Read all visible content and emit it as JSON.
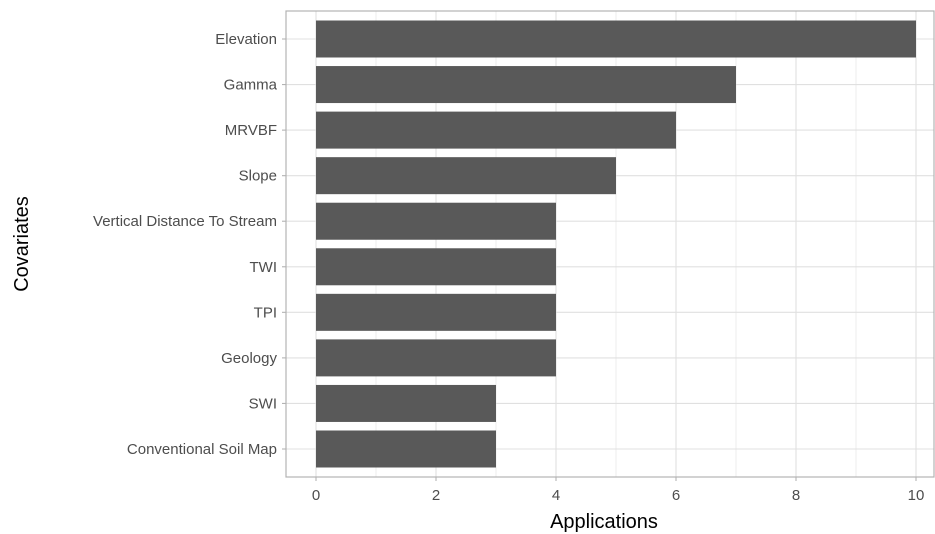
{
  "chart_data": {
    "type": "bar",
    "orientation": "horizontal",
    "categories": [
      "Elevation",
      "Gamma",
      "MRVBF",
      "Slope",
      "Vertical Distance To Stream",
      "TWI",
      "TPI",
      "Geology",
      "SWI",
      "Conventional Soil Map"
    ],
    "values": [
      10,
      7,
      6,
      5,
      4,
      4,
      4,
      4,
      3,
      3
    ],
    "xlabel": "Applications",
    "ylabel": "Covariates",
    "xlim": [
      0,
      10
    ],
    "x_ticks": [
      0,
      2,
      4,
      6,
      8,
      10
    ],
    "grid": true,
    "legend": "none",
    "colors": {
      "bar": "#595959",
      "grid": "#e0e0e0",
      "panel_border": "#b3b3b3",
      "tick_text": "#4d4d4d"
    }
  }
}
